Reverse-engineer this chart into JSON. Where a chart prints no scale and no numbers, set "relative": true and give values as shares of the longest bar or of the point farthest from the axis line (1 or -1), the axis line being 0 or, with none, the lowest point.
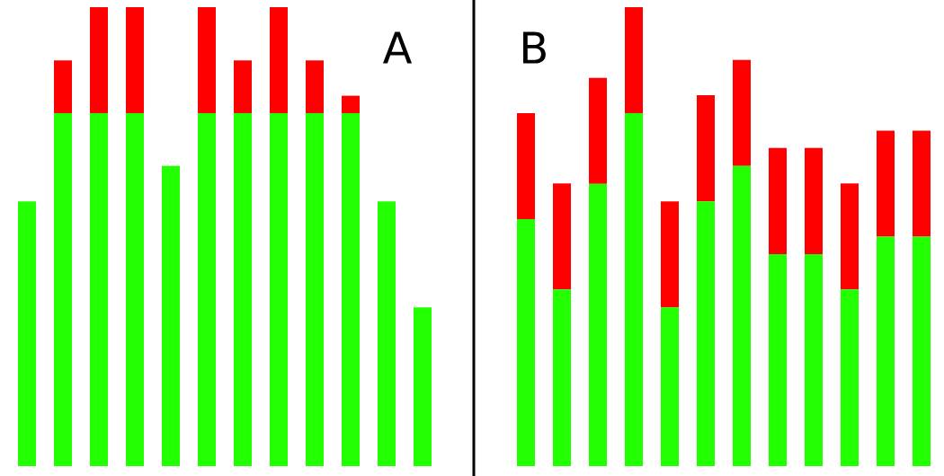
{
  "chart_data": [
    {
      "type": "bar",
      "title": "A",
      "stacked": true,
      "relative": true,
      "categories": [
        null,
        null,
        null,
        null,
        null,
        null,
        null,
        null,
        null,
        null,
        null,
        null
      ],
      "series": [
        {
          "color": "#22ff00",
          "values": [
            0.577,
            0.769,
            0.769,
            0.769,
            0.654,
            0.769,
            0.769,
            0.769,
            0.769,
            0.769,
            0.577,
            0.346
          ]
        },
        {
          "color": "#ff0000",
          "values": [
            0,
            0.115,
            0.231,
            0.231,
            0,
            0.231,
            0.115,
            0.231,
            0.115,
            0.038,
            0,
            0
          ]
        }
      ]
    },
    {
      "type": "bar",
      "title": "B",
      "stacked": true,
      "relative": true,
      "categories": [
        null,
        null,
        null,
        null,
        null,
        null,
        null,
        null,
        null,
        null,
        null,
        null
      ],
      "series": [
        {
          "color": "#22ff00",
          "values": [
            0.538,
            0.385,
            0.615,
            0.769,
            0.346,
            0.577,
            0.654,
            0.462,
            0.462,
            0.385,
            0.5,
            0.5
          ]
        },
        {
          "color": "#ff0000",
          "values": [
            0.231,
            0.231,
            0.231,
            0.231,
            0.231,
            0.231,
            0.231,
            0.231,
            0.231,
            0.231,
            0.231,
            0.231
          ]
        }
      ]
    }
  ]
}
